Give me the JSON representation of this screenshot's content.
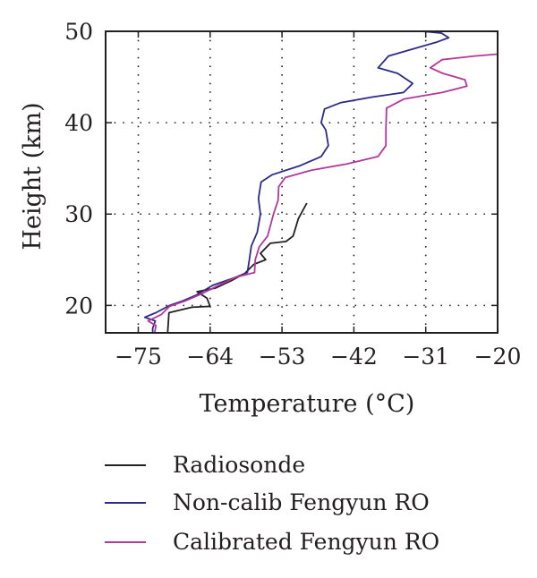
{
  "chart_data": {
    "type": "line",
    "xlabel": "Temperature (°C)",
    "ylabel": "Height (km)",
    "xlim": [
      -80,
      -20
    ],
    "ylim": [
      17,
      50
    ],
    "xticks": [
      "−75",
      "−64",
      "−53",
      "−42",
      "−31",
      "−20"
    ],
    "xtick_values": [
      -75,
      -64,
      -53,
      -42,
      -31,
      -20
    ],
    "yticks": [
      "20",
      "30",
      "40",
      "50"
    ],
    "ytick_values": [
      20,
      30,
      40,
      50
    ],
    "grid": "dotted",
    "legend_placement": "bottom",
    "series": [
      {
        "name": "Radiosonde",
        "color": "#231f20",
        "points": [
          [
            -70.5,
            17
          ],
          [
            -70.3,
            19.2
          ],
          [
            -66.8,
            19.8
          ],
          [
            -64,
            19.9
          ],
          [
            -64.5,
            20.8
          ],
          [
            -66,
            21.5
          ],
          [
            -63.2,
            21.9
          ],
          [
            -60.8,
            22.7
          ],
          [
            -58.7,
            23.5
          ],
          [
            -57.3,
            24.5
          ],
          [
            -55.5,
            25
          ],
          [
            -56.3,
            25.7
          ],
          [
            -54.8,
            26.8
          ],
          [
            -52.4,
            27
          ],
          [
            -51.3,
            27.6
          ],
          [
            -50.5,
            29.5
          ],
          [
            -49.2,
            31.2
          ]
        ]
      },
      {
        "name": "Non-calib Fengyun RO",
        "color": "#2e2a88",
        "points": [
          [
            -72.8,
            17
          ],
          [
            -72.8,
            17.5
          ],
          [
            -72.4,
            18.3
          ],
          [
            -74,
            18.7
          ],
          [
            -72.3,
            19.2
          ],
          [
            -70.2,
            20
          ],
          [
            -68.2,
            20.5
          ],
          [
            -66.2,
            21.1
          ],
          [
            -63.6,
            22.2
          ],
          [
            -60.4,
            23
          ],
          [
            -58.3,
            23.6
          ],
          [
            -58,
            25
          ],
          [
            -57.7,
            26.5
          ],
          [
            -56.8,
            28
          ],
          [
            -56.3,
            30
          ],
          [
            -56.6,
            31.7
          ],
          [
            -56.2,
            33.5
          ],
          [
            -54.5,
            34.3
          ],
          [
            -50.2,
            35.3
          ],
          [
            -47,
            36.3
          ],
          [
            -45.9,
            37.5
          ],
          [
            -46.3,
            39.2
          ],
          [
            -47,
            40
          ],
          [
            -46.5,
            41.5
          ],
          [
            -44,
            42.2
          ],
          [
            -39.2,
            42.8
          ],
          [
            -34.4,
            43.3
          ],
          [
            -33,
            44.3
          ],
          [
            -35.3,
            45.4
          ],
          [
            -38.3,
            46
          ],
          [
            -36.7,
            47.3
          ],
          [
            -32.8,
            48.1
          ],
          [
            -29.4,
            48.8
          ],
          [
            -27.5,
            49.3
          ],
          [
            -28.6,
            49.8
          ],
          [
            -31.5,
            50
          ]
        ]
      },
      {
        "name": "Calibrated Fengyun RO",
        "color": "#b4379a",
        "points": [
          [
            -72.5,
            17
          ],
          [
            -72.3,
            17.8
          ],
          [
            -73.5,
            18.3
          ],
          [
            -71.5,
            19
          ],
          [
            -70.2,
            19.9
          ],
          [
            -67.8,
            20.5
          ],
          [
            -65.5,
            21.2
          ],
          [
            -63,
            22.1
          ],
          [
            -60,
            23.1
          ],
          [
            -57.2,
            23.6
          ],
          [
            -57.1,
            25
          ],
          [
            -56.5,
            26.4
          ],
          [
            -55.2,
            27.6
          ],
          [
            -54.3,
            30
          ],
          [
            -53.6,
            31.5
          ],
          [
            -53.5,
            33
          ],
          [
            -52.5,
            34
          ],
          [
            -48.5,
            34.8
          ],
          [
            -43,
            35.5
          ],
          [
            -38.3,
            36.3
          ],
          [
            -37.1,
            37.5
          ],
          [
            -37.1,
            39.3
          ],
          [
            -37,
            41.6
          ],
          [
            -34.3,
            42.6
          ],
          [
            -28.5,
            43.3
          ],
          [
            -24.7,
            44
          ],
          [
            -25,
            44.7
          ],
          [
            -28.4,
            45.4
          ],
          [
            -30.3,
            46
          ],
          [
            -28.5,
            46.9
          ],
          [
            -23.5,
            47.3
          ],
          [
            -20,
            47.5
          ]
        ]
      }
    ]
  }
}
